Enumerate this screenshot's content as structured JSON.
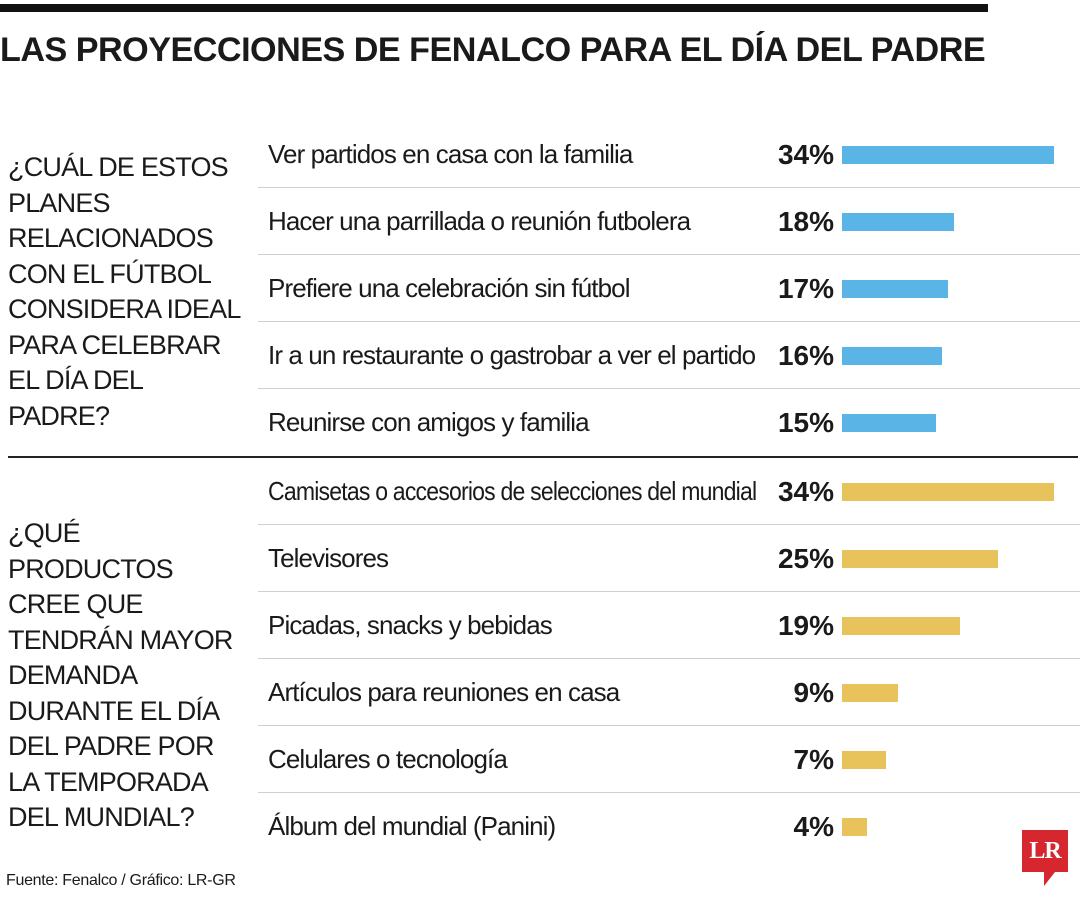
{
  "title": "LAS PROYECCIONES DE FENALCO PARA EL DÍA DEL PADRE",
  "colors": {
    "blue": "#5bb4e6",
    "yellow": "#e8c25a"
  },
  "chart_data": [
    {
      "type": "bar",
      "orientation": "horizontal",
      "question": "¿Cuál de estos planes relacionados con el fútbol considera ideal para celebrar el Día del Padre?",
      "color": "#5bb4e6",
      "categories": [
        "Ver partidos en casa con la familia",
        "Hacer una parrillada o reunión futbolera",
        "Prefiere una celebración sin fútbol",
        "Ir a un restaurante o gastrobar a ver el partido",
        "Reunirse con amigos y familia"
      ],
      "values": [
        34,
        18,
        17,
        16,
        15
      ],
      "labels": [
        "34%",
        "18%",
        "17%",
        "16%",
        "15%"
      ]
    },
    {
      "type": "bar",
      "orientation": "horizontal",
      "question": "¿Qué productos cree que tendrán mayor demanda durante el Día del Padre por la temporada del mundial?",
      "color": "#e8c25a",
      "categories": [
        "Camisetas o accesorios de selecciones del mundial",
        "Televisores",
        "Picadas, snacks y bebidas",
        "Artículos para reuniones en casa",
        "Celulares o tecnología",
        "Álbum del mundial (Panini)"
      ],
      "values": [
        34,
        25,
        19,
        9,
        7,
        4
      ],
      "labels": [
        "34%",
        "25%",
        "19%",
        "9%",
        "7%",
        "4%"
      ]
    }
  ],
  "source": "Fuente: Fenalco / Gráfico: LR-GR",
  "logo": "LR"
}
